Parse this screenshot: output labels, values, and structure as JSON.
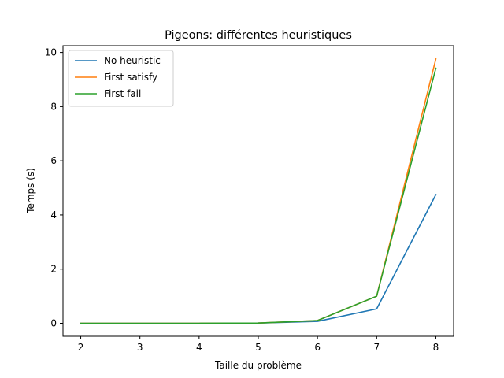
{
  "chart_data": {
    "type": "line",
    "title": "Pigeons: différentes heuristiques",
    "xlabel": "Taille du problème",
    "ylabel": "Temps (s)",
    "x": [
      2,
      3,
      4,
      5,
      6,
      7,
      8
    ],
    "xlim": [
      1.7,
      8.3
    ],
    "ylim": [
      -0.48,
      10.25
    ],
    "xticks": [
      2,
      3,
      4,
      5,
      6,
      7,
      8
    ],
    "yticks": [
      0,
      2,
      4,
      6,
      8,
      10
    ],
    "legend_position": "top-left",
    "grid": false,
    "series": [
      {
        "name": "No heuristic",
        "color": "#1f77b4",
        "values": [
          0.0,
          0.0,
          0.0,
          0.01,
          0.07,
          0.53,
          4.75
        ]
      },
      {
        "name": "First satisfy",
        "color": "#ff7f0e",
        "values": [
          0.0,
          0.0,
          0.0,
          0.01,
          0.1,
          1.0,
          9.76
        ]
      },
      {
        "name": "First fail",
        "color": "#2ca02c",
        "values": [
          0.0,
          0.0,
          0.0,
          0.01,
          0.1,
          1.0,
          9.42
        ]
      }
    ]
  }
}
